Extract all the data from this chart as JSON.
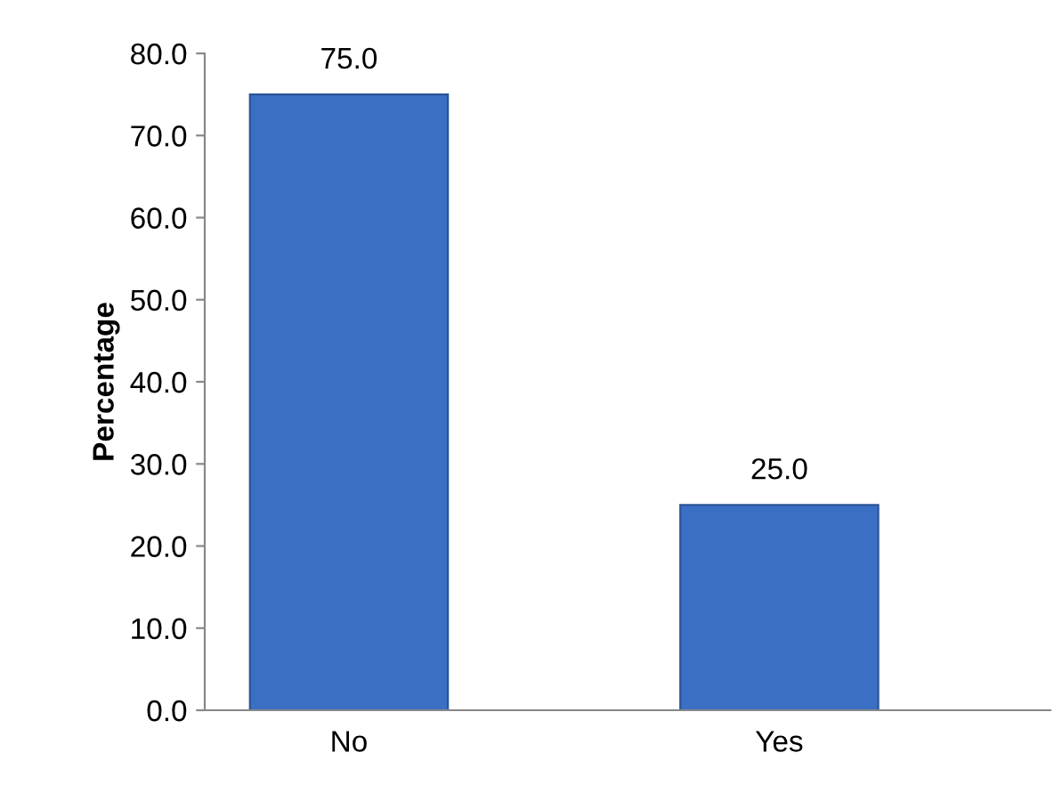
{
  "chart_data": {
    "type": "bar",
    "ylabel": "Percentage",
    "categories": [
      "No",
      "Yes"
    ],
    "values": [
      75.0,
      25.0
    ],
    "color": "#3a6fc4",
    "value_labels": [
      "75.0",
      "25.0"
    ],
    "ylim": [
      0,
      80
    ],
    "yticks": [
      {
        "value": 0,
        "label": "0.0"
      },
      {
        "value": 10,
        "label": "10.0"
      },
      {
        "value": 20,
        "label": "20.0"
      },
      {
        "value": 30,
        "label": "30.0"
      },
      {
        "value": 40,
        "label": "40.0"
      },
      {
        "value": 50,
        "label": "50.0"
      },
      {
        "value": 60,
        "label": "60.0"
      },
      {
        "value": 70,
        "label": "70.0"
      },
      {
        "value": 80,
        "label": "80.0"
      }
    ],
    "grid": false,
    "legend": false
  }
}
